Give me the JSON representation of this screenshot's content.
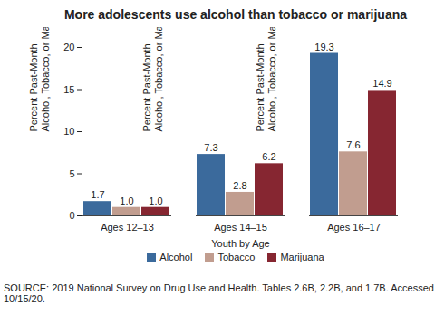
{
  "chart_data": {
    "type": "bar",
    "title": "More adolescents use alcohol than tobacco or marijuana",
    "y_label": "Percent Past-Month\nAlcohol, Tobacco, or Marijuana Use",
    "x_label": "Youth by Age",
    "caption": "SOURCE: 2019 National Survey on Drug Use and Health. Tables 2.6B, 2.2B, and 1.7B. Accessed 10/15/20.",
    "categories": [
      "Ages 12–13",
      "Ages 14–15",
      "Ages 16–17"
    ],
    "series": [
      {
        "name": "Alcohol",
        "color": "#3b6a9c",
        "values": [
          1.7,
          7.3,
          19.3
        ],
        "value_labels": [
          "1.7",
          "7.3",
          "19.3"
        ]
      },
      {
        "name": "Tobacco",
        "color": "#c19d8f",
        "values": [
          1.0,
          2.8,
          7.6
        ],
        "value_labels": [
          "1.0",
          "2.8",
          "7.6"
        ]
      },
      {
        "name": "Marijuana",
        "color": "#862631",
        "values": [
          1.0,
          6.2,
          14.9
        ],
        "value_labels": [
          "1.0",
          "6.2",
          "14.9"
        ]
      }
    ],
    "ylim": [
      0,
      20
    ],
    "yticks": [
      0,
      5,
      10,
      15,
      20
    ],
    "grid": false,
    "data_labels": true,
    "legend": "bottom"
  }
}
